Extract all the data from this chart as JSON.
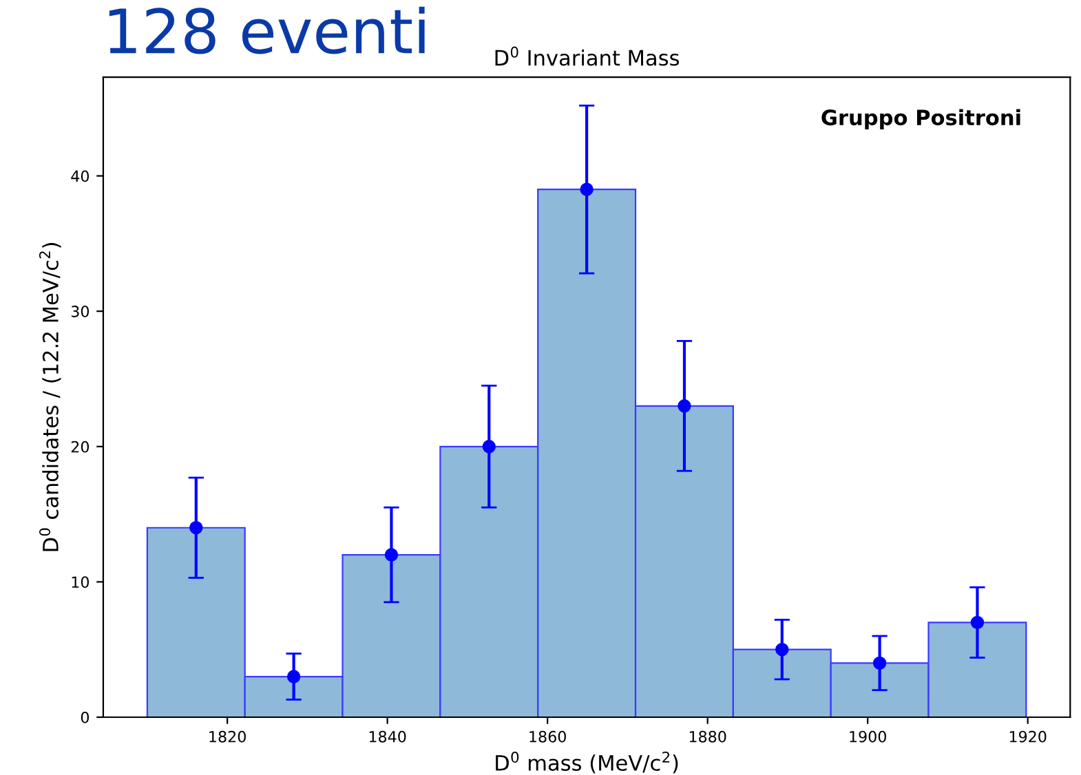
{
  "chart_data": {
    "type": "histogram",
    "title": "D$^{0}$ Invariant Mass",
    "xlabel": "D$^{0}$ mass (MeV/c$^{2}$)",
    "ylabel": "D$^{0}$ candidates / (12.2 MeV/c$^{2}$)",
    "annotations": [
      "128 eventi",
      "Gruppo Positroni"
    ],
    "bins": [
      1810,
      1822.2,
      1834.4,
      1846.6,
      1858.8,
      1871,
      1883.2,
      1895.4,
      1907.6,
      1919.8
    ],
    "series": [
      {
        "type": "histogram",
        "color": "#8fb9d9",
        "values": [
          14,
          3,
          12,
          20,
          39,
          23,
          5,
          4,
          7
        ]
      },
      {
        "type": "scatter",
        "color": "#0000ff",
        "x": [
          1816.1,
          1828.3,
          1840.5,
          1852.7,
          1864.9,
          1877.1,
          1889.3,
          1901.5,
          1913.7
        ],
        "values": [
          14,
          3,
          12,
          20,
          39,
          23,
          5,
          4,
          7
        ],
        "errors": [
          3.7,
          1.7,
          3.5,
          4.5,
          6.2,
          4.8,
          2.2,
          2.0,
          2.6
        ]
      }
    ],
    "xlim": [
      1804.5,
      1925.3
    ],
    "ylim": [
      0,
      47.3
    ],
    "xticks": [
      1820,
      1840,
      1860,
      1880,
      1900,
      1920
    ],
    "yticks": [
      0,
      10,
      20,
      30,
      40
    ],
    "grid": false,
    "legend": false,
    "marker": "circle"
  }
}
